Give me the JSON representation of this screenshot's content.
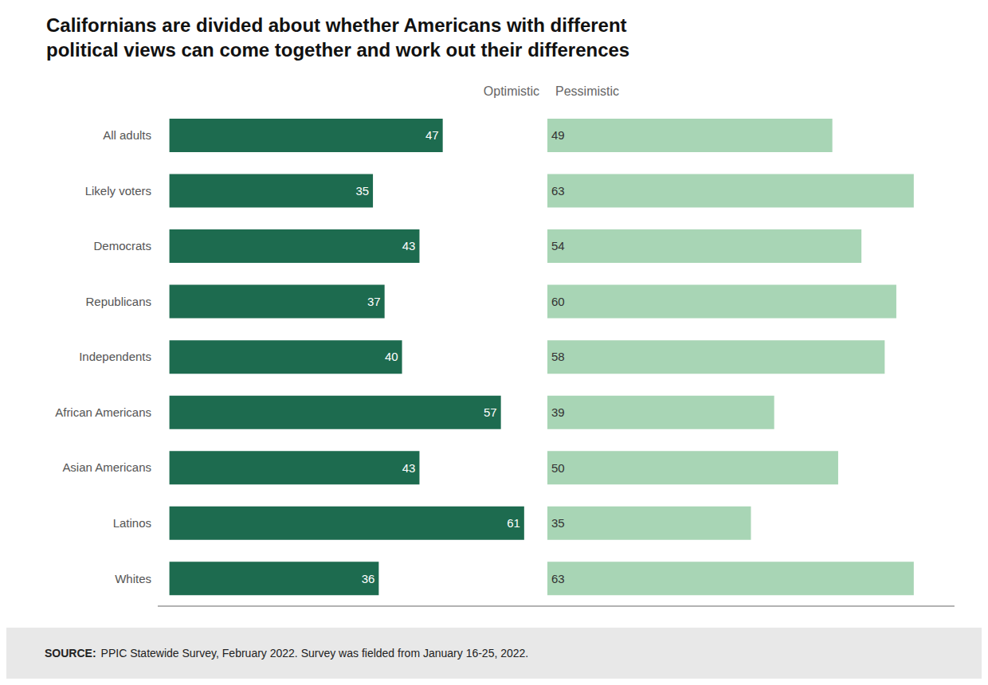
{
  "chart_data": [
    {
      "type": "bar",
      "orientation": "horizontal",
      "title": "Californians are divided about whether Americans with different\npolitical views can come together and work out their differences",
      "categories": [
        "All adults",
        "Likely voters",
        "Democrats",
        "Republicans",
        "Independents",
        "African Americans",
        "Asian Americans",
        "Latinos",
        "Whites"
      ],
      "series": [
        {
          "name": "Optimistic",
          "color": "#1d6b4f",
          "values": [
            47,
            35,
            43,
            37,
            40,
            57,
            43,
            61,
            36
          ]
        }
      ],
      "xlim": [
        -2,
        65
      ],
      "data_labels": true,
      "tick_labels": "y",
      "grid": false,
      "annotations": [
        "SOURCE:",
        "PPIC Statewide Survey, February 2022. Survey was fielded from January 16-25, 2022."
      ]
    },
    {
      "type": "bar",
      "orientation": "horizontal",
      "categories": [
        "All adults",
        "Likely voters",
        "Democrats",
        "Republicans",
        "Independents",
        "African Americans",
        "Asian Americans",
        "Latinos",
        "Whites"
      ],
      "series": [
        {
          "name": "Pessimistic",
          "color": "#a8d5b5",
          "values": [
            49,
            63,
            54,
            60,
            58,
            39,
            50,
            35,
            63
          ]
        }
      ],
      "xlim": [
        0,
        70
      ],
      "data_labels": true,
      "tick_labels": false,
      "grid": false
    }
  ]
}
